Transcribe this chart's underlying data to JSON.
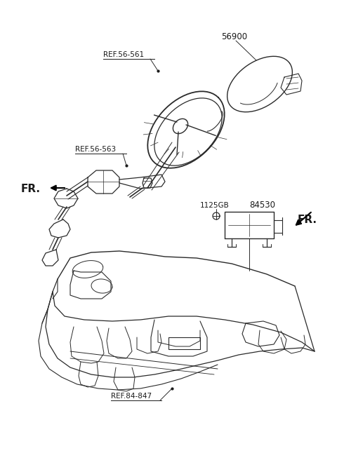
{
  "background_color": "#ffffff",
  "fig_width": 4.8,
  "fig_height": 6.56,
  "dpi": 100,
  "labels": {
    "ref_56_561": "REF.56-561",
    "ref_56_563": "REF.56-563",
    "ref_84_847": "REF.84-847",
    "part_56900": "56900",
    "part_84530": "84530",
    "part_1125GB": "1125GB",
    "fr_left": "FR.",
    "fr_right": "FR."
  },
  "line_color": "#2a2a2a",
  "text_color": "#1a1a1a",
  "label_font_size": 7.5,
  "fr_font_size": 11,
  "part_font_size": 8.5
}
